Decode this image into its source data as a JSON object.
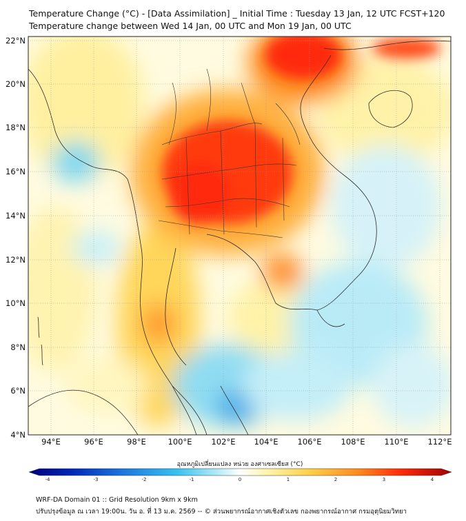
{
  "title_line1": "Temperature Change (°C) - [Data Assimilation] _ Initial Time : Tuesday 13 Jan, 12 UTC FCST+120",
  "title_line2": "Temperature change between Wed 14 Jan, 00 UTC and Mon 19 Jan, 00 UTC",
  "lat_labels": [
    "22°N",
    "20°N",
    "18°N",
    "16°N",
    "14°N",
    "12°N",
    "10°N",
    "8°N",
    "6°N",
    "4°N"
  ],
  "lon_labels": [
    "94°E",
    "96°E",
    "98°E",
    "100°E",
    "102°E",
    "104°E",
    "106°E",
    "108°E",
    "110°E",
    "112°E"
  ],
  "colorbar": {
    "title": "อุณหภูมิเปลี่ยนแปลง หน่วย องศาเซลเซียส (°C)",
    "ticks": [
      "-4",
      "-3",
      "-2",
      "-1",
      "0",
      "1",
      "2",
      "3",
      "4"
    ],
    "colors": [
      "#00007a",
      "#0026b8",
      "#1a75e0",
      "#35c2f0",
      "#c8f0f8",
      "#ffffff",
      "#fff5b0",
      "#ffd24a",
      "#ff8a1c",
      "#ff2a08",
      "#a30000"
    ]
  },
  "footer_line1": "WRF-DA Domain 01 :: Grid Resolution 9km x 9km",
  "footer_line2": "ปรับปรุงข้อมูล ณ เวลา 19:00น. วัน อ. ที่ 13 ม.ค. 2569 -- © ส่วนพยากรณ์อากาศเชิงตัวเลข กองพยากรณ์อากาศ กรมอุตุนิยมวิทยา"
}
